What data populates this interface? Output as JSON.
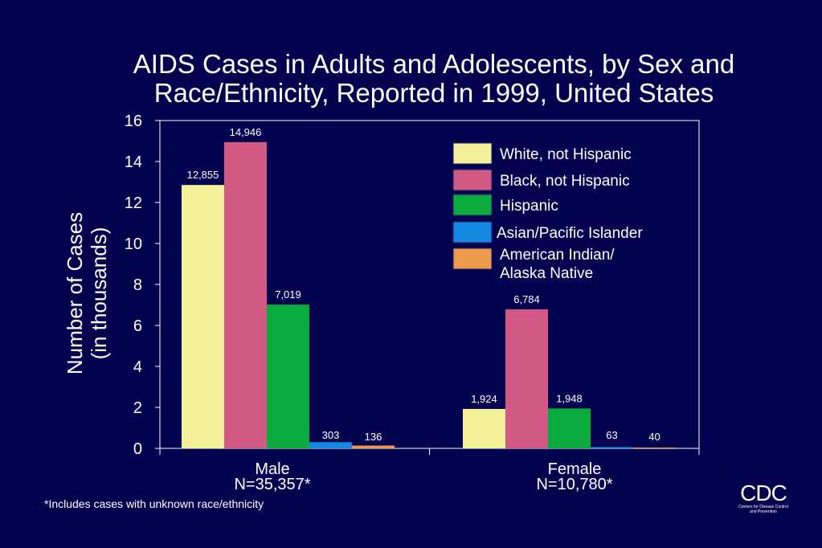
{
  "title": {
    "line1": "AIDS Cases in Adults and Adolescents, by Sex and",
    "line2": "Race/Ethnicity, Reported in 1999, United States"
  },
  "ylabel": {
    "line1": "Number of Cases",
    "line2": "(in thousands)"
  },
  "footnote": "*Includes cases with unknown race/ethnicity",
  "logo": {
    "mark": "CDC",
    "sub_line1": "Centers for Disease Control",
    "sub_line2": "and Prevention"
  },
  "chart_data": {
    "type": "bar",
    "ylim": [
      0,
      16
    ],
    "yticks": [
      0,
      2,
      4,
      6,
      8,
      10,
      12,
      14,
      16
    ],
    "grid": false,
    "legend_position": "top-right",
    "categories": [
      {
        "line1": "Male",
        "line2": "N=35,357*"
      },
      {
        "line1": "Female",
        "line2": "N=10,780*"
      }
    ],
    "series": [
      {
        "name_lines": [
          "White, not Hispanic"
        ],
        "color": "#f5f09a",
        "values": [
          12.855,
          1.924
        ],
        "labels": [
          "12,855",
          "1,924"
        ]
      },
      {
        "name_lines": [
          "Black, not Hispanic"
        ],
        "color": "#d45a86",
        "values": [
          14.946,
          6.784
        ],
        "labels": [
          "14,946",
          "6,784"
        ]
      },
      {
        "name_lines": [
          "Hispanic"
        ],
        "color": "#0aaa3c",
        "values": [
          7.019,
          1.948
        ],
        "labels": [
          "7,019",
          "1,948"
        ]
      },
      {
        "name_lines": [
          "Asian/Pacific Islander"
        ],
        "color": "#1589e0",
        "values": [
          0.303,
          0.063
        ],
        "labels": [
          "303",
          "63"
        ]
      },
      {
        "name_lines": [
          "American Indian/",
          "Alaska Native"
        ],
        "color": "#ee9a4c",
        "values": [
          0.136,
          0.04
        ],
        "labels": [
          "136",
          "40"
        ]
      }
    ]
  }
}
